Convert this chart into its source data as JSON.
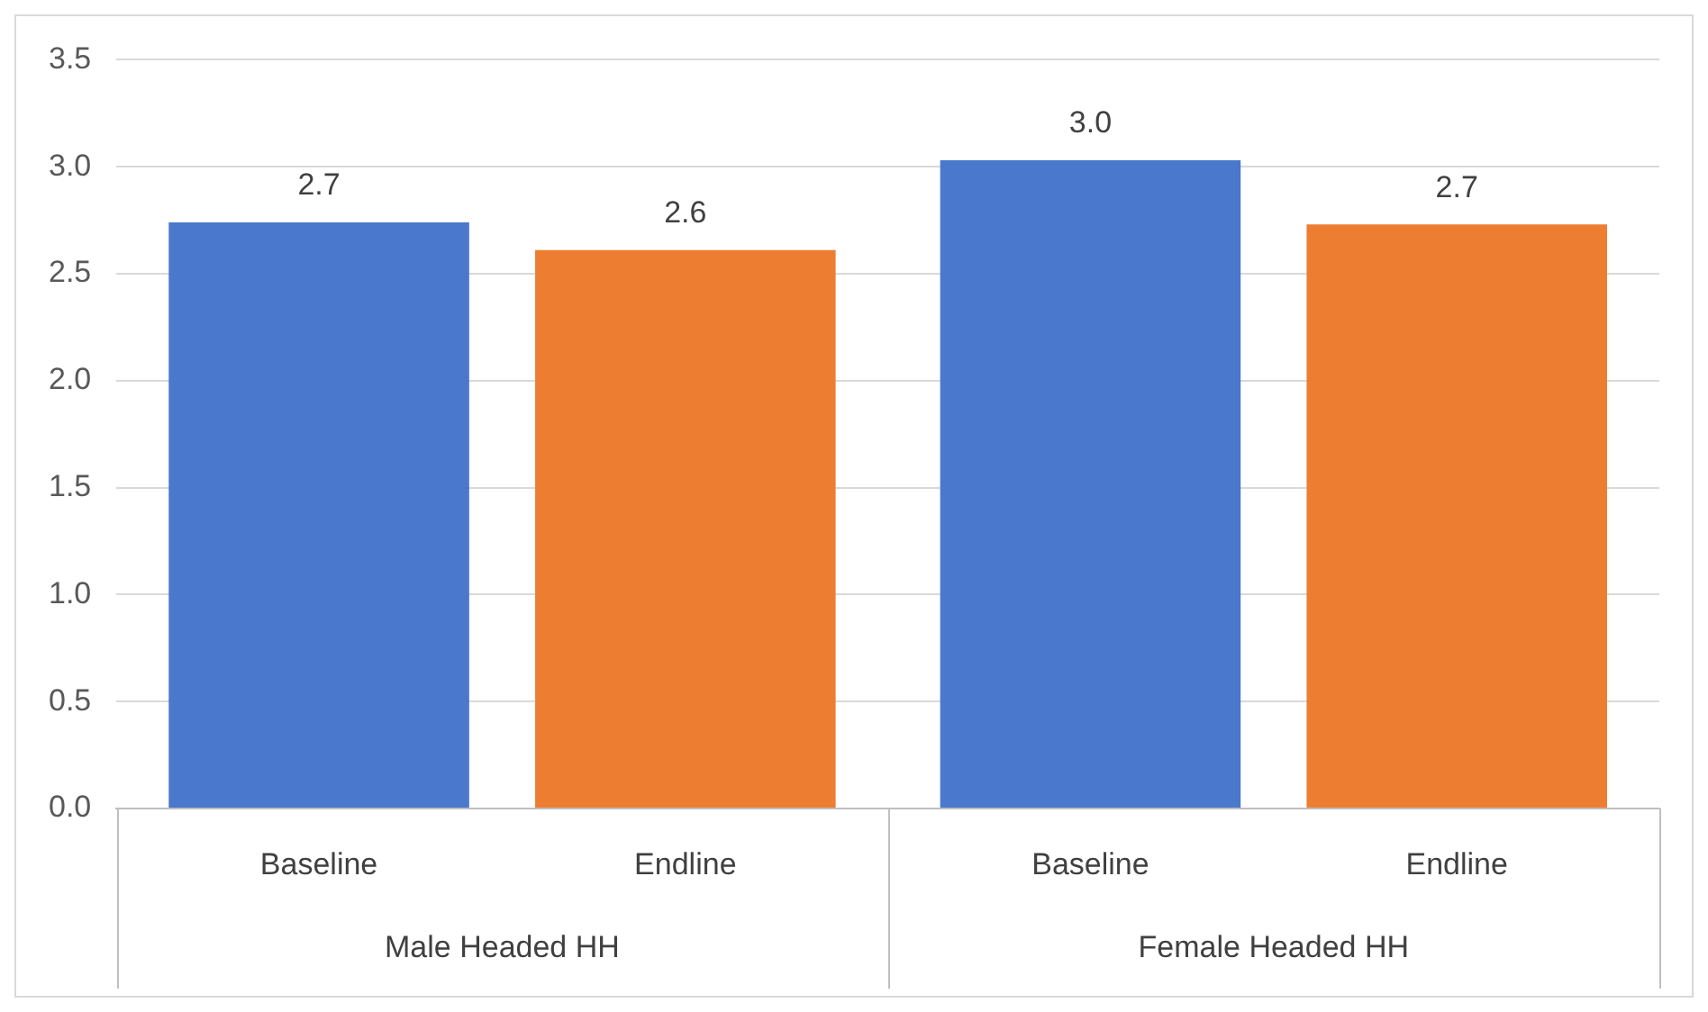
{
  "chart_data": {
    "type": "bar",
    "categories": [
      "Male Headed HH",
      "Female Headed HH"
    ],
    "series": [
      {
        "name": "Baseline",
        "color": "#4a78cc",
        "values": [
          2.74,
          3.03
        ],
        "value_labels": [
          "2.7",
          "3.0"
        ]
      },
      {
        "name": "Endline",
        "color": "#ed7d31",
        "values": [
          2.61,
          2.73
        ],
        "value_labels": [
          "2.6",
          "2.7"
        ]
      }
    ],
    "ylim": [
      0,
      3.5
    ],
    "yticks": [
      {
        "value": 0,
        "label": "0.0"
      },
      {
        "value": 0.5,
        "label": "0.5"
      },
      {
        "value": 1,
        "label": "1.0"
      },
      {
        "value": 1.5,
        "label": "1.5"
      },
      {
        "value": 2,
        "label": "2.0"
      },
      {
        "value": 2.5,
        "label": "2.5"
      },
      {
        "value": 3,
        "label": "3.0"
      },
      {
        "value": 3.5,
        "label": "3.5"
      }
    ],
    "grid": "y",
    "legend": false
  }
}
